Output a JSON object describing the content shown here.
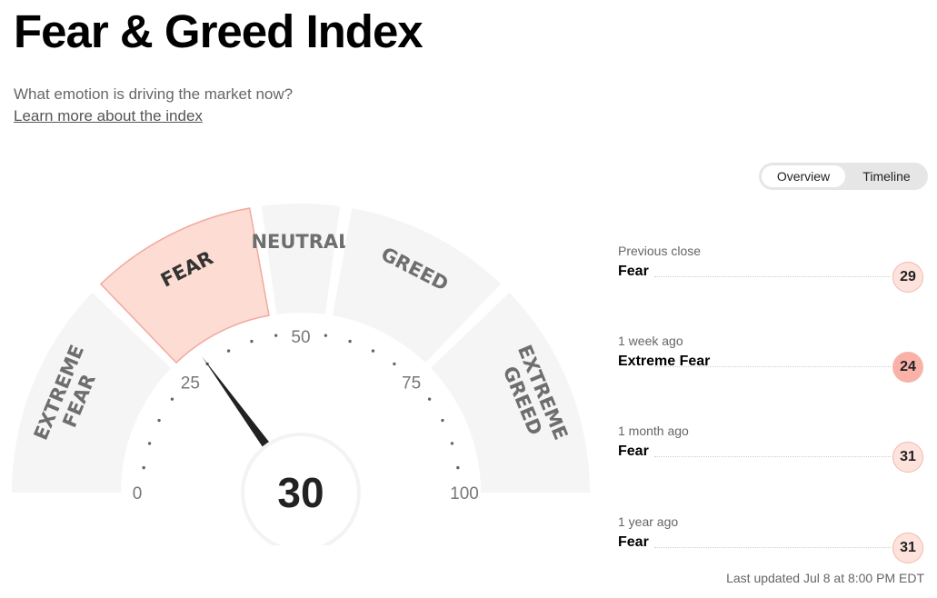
{
  "page": {
    "title": "Fear & Greed Index",
    "subtitle": "What emotion is driving the market now?",
    "learn_link": "Learn more about the index"
  },
  "toggle": {
    "overview": "Overview",
    "timeline": "Timeline",
    "active": "overview"
  },
  "gauge": {
    "value": 30,
    "value_label": "30",
    "min": 0,
    "max": 100,
    "scale_labels": [
      "0",
      "25",
      "50",
      "75",
      "100"
    ],
    "active_segment": 1,
    "segments": [
      {
        "lines": [
          "EXTREME",
          "FEAR"
        ],
        "from": 0,
        "to": 25
      },
      {
        "lines": [
          "FEAR"
        ],
        "from": 25,
        "to": 45
      },
      {
        "lines": [
          "NEUTRAL"
        ],
        "from": 45,
        "to": 55
      },
      {
        "lines": [
          "GREED"
        ],
        "from": 55,
        "to": 75
      },
      {
        "lines": [
          "EXTREME",
          "GREED"
        ],
        "from": 75,
        "to": 100
      }
    ],
    "colors": {
      "segment": "#f5f5f5",
      "active_fill": "#fddcd3",
      "active_stroke": "#f2a9a0",
      "label": "#6e6e6e",
      "needle": "#222222",
      "ticks": "#666666"
    }
  },
  "history": [
    {
      "label": "Previous close",
      "rating": "Fear",
      "value": "29",
      "color": "#fde3dc"
    },
    {
      "label": "1 week ago",
      "rating": "Extreme Fear",
      "value": "24",
      "color": "#f9b1a8"
    },
    {
      "label": "1 month ago",
      "rating": "Fear",
      "value": "31",
      "color": "#fde3dc"
    },
    {
      "label": "1 year ago",
      "rating": "Fear",
      "value": "31",
      "color": "#fde3dc"
    }
  ],
  "last_updated": "Last updated Jul 8 at 8:00 PM EDT"
}
